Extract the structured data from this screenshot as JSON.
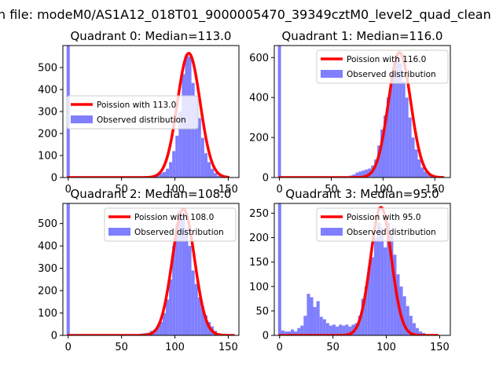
{
  "title": "n file: modeM0/AS1A12_018T01_9000005470_39349cztM0_level2_quad_clean",
  "chart_data": [
    {
      "type": "bar",
      "title": "Quadrant 0: Median=113.0",
      "xlim": [
        -5,
        160
      ],
      "ylim": [
        0,
        600
      ],
      "xticks": [
        0,
        50,
        100,
        150
      ],
      "yticks": [
        0,
        100,
        200,
        300,
        400,
        500
      ],
      "legend_position": "center-left",
      "legend": [
        "Poission with 113.0",
        "Observed distribution"
      ],
      "bin_width": 3,
      "observed": {
        "name": "Observed distribution",
        "x": [
          0,
          66,
          69,
          72,
          75,
          78,
          81,
          84,
          87,
          90,
          93,
          96,
          99,
          102,
          105,
          108,
          111,
          114,
          117,
          120,
          123,
          126,
          129,
          132,
          135,
          138,
          141,
          144,
          147
        ],
        "values": [
          600,
          1,
          2,
          3,
          5,
          8,
          12,
          18,
          20,
          25,
          40,
          70,
          120,
          190,
          300,
          470,
          560,
          550,
          430,
          370,
          270,
          180,
          110,
          70,
          40,
          20,
          8,
          3,
          1
        ]
      },
      "poisson": {
        "name": "Poission with 113.0",
        "lambda": 113.0,
        "peak": 565,
        "x_range": [
          0,
          150
        ]
      }
    },
    {
      "type": "bar",
      "title": "Quadrant 1: Median=116.0",
      "xlim": [
        -5,
        165
      ],
      "ylim": [
        0,
        660
      ],
      "xticks": [
        0,
        50,
        100,
        150
      ],
      "yticks": [
        0,
        200,
        400,
        600
      ],
      "legend_position": "top-right",
      "legend": [
        "Poission with 116.0",
        "Observed distribution"
      ],
      "bin_width": 3,
      "observed": {
        "name": "Observed distribution",
        "x": [
          0,
          66,
          69,
          72,
          75,
          78,
          81,
          84,
          87,
          90,
          93,
          96,
          99,
          102,
          105,
          108,
          111,
          114,
          117,
          120,
          123,
          126,
          129,
          132,
          135,
          138,
          141,
          144,
          147,
          150
        ],
        "values": [
          660,
          5,
          10,
          15,
          25,
          30,
          35,
          40,
          45,
          60,
          90,
          160,
          240,
          310,
          400,
          470,
          560,
          600,
          570,
          480,
          400,
          300,
          200,
          140,
          90,
          50,
          30,
          15,
          8,
          3
        ]
      },
      "poisson": {
        "name": "Poission with 116.0",
        "lambda": 116.0,
        "peak": 625,
        "x_range": [
          0,
          158
        ]
      }
    },
    {
      "type": "bar",
      "title": "Quadrant 2: Median=108.0",
      "xlim": [
        -5,
        160
      ],
      "ylim": [
        0,
        590
      ],
      "xticks": [
        0,
        50,
        100,
        150
      ],
      "yticks": [
        0,
        100,
        200,
        300,
        400,
        500
      ],
      "legend_position": "top-right",
      "legend": [
        "Poission with 108.0",
        "Observed distribution"
      ],
      "bin_width": 3,
      "observed": {
        "name": "Observed distribution",
        "x": [
          0,
          60,
          63,
          66,
          69,
          72,
          75,
          78,
          81,
          84,
          87,
          90,
          93,
          96,
          99,
          102,
          105,
          108,
          111,
          114,
          117,
          120,
          123,
          126,
          129,
          132,
          135,
          138,
          141,
          144
        ],
        "values": [
          590,
          2,
          3,
          5,
          8,
          10,
          12,
          20,
          25,
          40,
          60,
          100,
          160,
          250,
          400,
          500,
          560,
          540,
          480,
          400,
          290,
          230,
          170,
          130,
          90,
          60,
          40,
          20,
          10,
          4
        ]
      },
      "poisson": {
        "name": "Poission with 108.0",
        "lambda": 108.0,
        "peak": 565,
        "x_range": [
          0,
          155
        ]
      }
    },
    {
      "type": "bar",
      "title": "Quadrant 3: Median=95.0",
      "xlim": [
        -5,
        160
      ],
      "ylim": [
        0,
        270
      ],
      "xticks": [
        0,
        50,
        100,
        150
      ],
      "yticks": [
        0,
        50,
        100,
        150,
        200,
        250
      ],
      "legend_position": "top-right",
      "legend": [
        "Poission with 95.0",
        "Observed distribution"
      ],
      "bin_width": 3,
      "observed": {
        "name": "Observed distribution",
        "x": [
          0,
          3,
          6,
          9,
          12,
          15,
          18,
          21,
          24,
          27,
          30,
          33,
          36,
          39,
          42,
          45,
          48,
          51,
          54,
          57,
          60,
          63,
          66,
          69,
          72,
          75,
          78,
          81,
          84,
          87,
          90,
          93,
          96,
          99,
          102,
          105,
          108,
          111,
          114,
          117,
          120,
          123,
          126,
          129,
          132,
          135,
          138
        ],
        "values": [
          270,
          10,
          8,
          8,
          12,
          8,
          15,
          20,
          40,
          85,
          78,
          58,
          70,
          38,
          33,
          25,
          20,
          22,
          18,
          22,
          20,
          22,
          18,
          22,
          25,
          40,
          75,
          100,
          140,
          160,
          200,
          230,
          220,
          180,
          230,
          205,
          165,
          125,
          100,
          80,
          60,
          40,
          25,
          15,
          8,
          5,
          2
        ]
      },
      "poisson": {
        "name": "Poission with 95.0",
        "lambda": 95.0,
        "peak": 262,
        "x_range": [
          0,
          148
        ]
      }
    }
  ],
  "colors": {
    "observed": "#7f7fff",
    "poisson": "#ff0000"
  }
}
